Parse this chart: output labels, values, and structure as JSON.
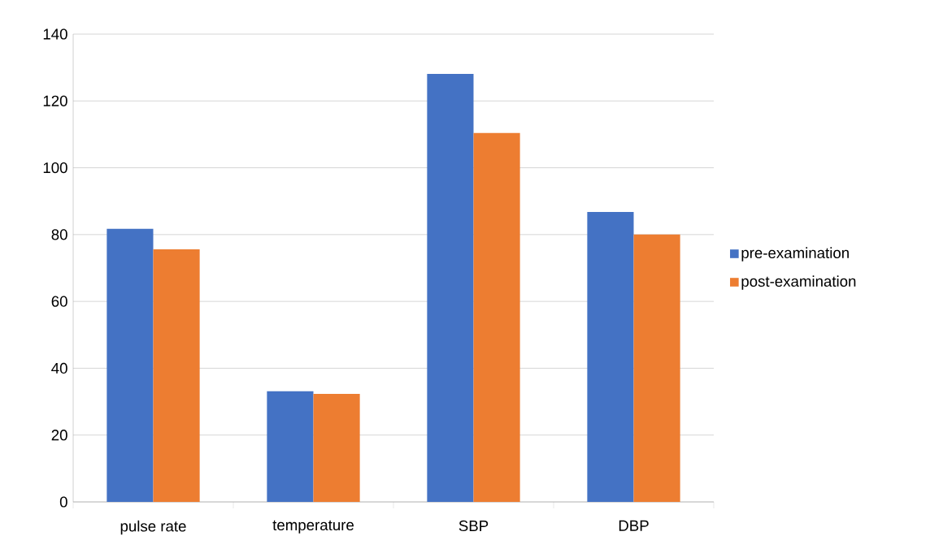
{
  "chart_data": {
    "type": "bar",
    "categories": [
      "pulse rate",
      "temperature",
      "SBP",
      "DBP"
    ],
    "series": [
      {
        "name": "pre-examination",
        "color": "#4472c4",
        "values": [
          81.7,
          33.1,
          128.1,
          86.8
        ]
      },
      {
        "name": "post-examination",
        "color": "#ed7d31",
        "values": [
          75.6,
          32.3,
          110.4,
          80.0
        ]
      }
    ],
    "ylim": [
      0,
      140
    ],
    "yticks": [
      0,
      20,
      40,
      60,
      80,
      100,
      120,
      140
    ],
    "grid": "y",
    "legend": "right"
  }
}
